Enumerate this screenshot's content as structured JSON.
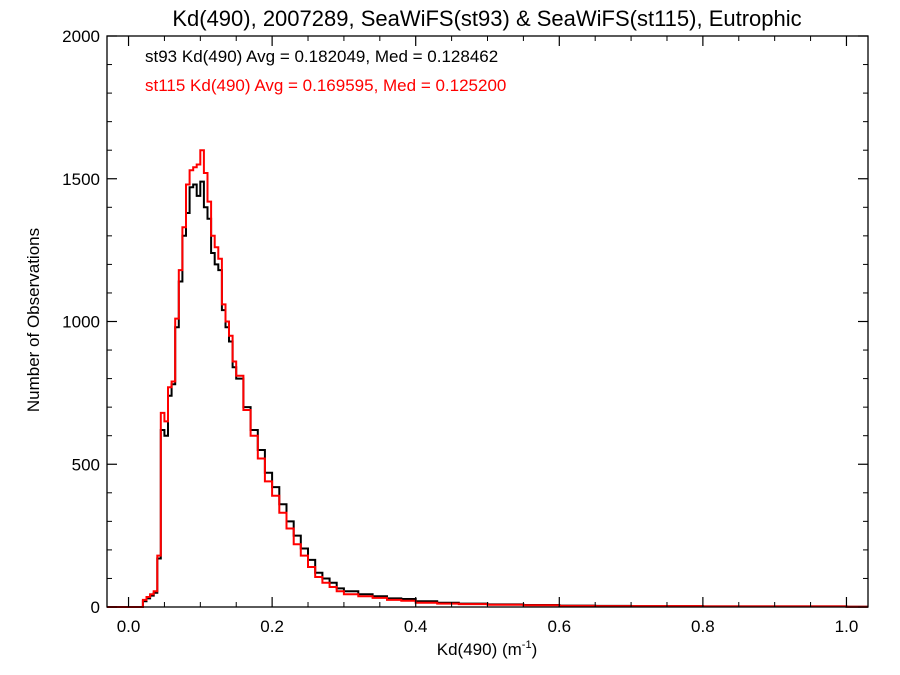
{
  "chart_data": {
    "type": "histogram",
    "title": "Kd(490), 2007289, SeaWiFS(st93) & SeaWiFS(st115), Eutrophic",
    "xlabel": "Kd(490) (m",
    "xlabel_sup": "-1",
    "xlabel_close": ")",
    "ylabel": "Number of Observations",
    "xlim": [
      -0.03,
      1.03
    ],
    "ylim": [
      0,
      2000
    ],
    "xticks": [
      0.0,
      0.2,
      0.4,
      0.6,
      0.8,
      1.0
    ],
    "xtick_labels": [
      "0.0",
      "0.2",
      "0.4",
      "0.6",
      "0.8",
      "1.0"
    ],
    "yticks": [
      0,
      500,
      1000,
      1500,
      2000
    ],
    "ytick_labels": [
      "0",
      "500",
      "1000",
      "1500",
      "2000"
    ],
    "bin_width": 0.005,
    "series": [
      {
        "name": "st93",
        "color": "#000000",
        "annotation": "st93 Kd(490) Avg = 0.182049, Med = 0.128462",
        "x": [
          -0.03,
          0.015,
          0.02,
          0.025,
          0.03,
          0.035,
          0.04,
          0.045,
          0.05,
          0.055,
          0.06,
          0.065,
          0.07,
          0.075,
          0.08,
          0.085,
          0.09,
          0.095,
          0.1,
          0.105,
          0.11,
          0.115,
          0.12,
          0.125,
          0.13,
          0.135,
          0.14,
          0.145,
          0.15,
          0.16,
          0.17,
          0.18,
          0.19,
          0.2,
          0.21,
          0.22,
          0.23,
          0.24,
          0.25,
          0.26,
          0.27,
          0.28,
          0.29,
          0.3,
          0.32,
          0.34,
          0.36,
          0.38,
          0.4,
          0.43,
          0.46,
          0.5,
          0.55,
          0.6,
          0.65,
          0.7,
          0.8,
          0.9,
          1.0
        ],
        "y": [
          0,
          0,
          20,
          30,
          40,
          50,
          170,
          620,
          600,
          740,
          780,
          980,
          1140,
          1300,
          1380,
          1470,
          1480,
          1440,
          1490,
          1400,
          1360,
          1240,
          1200,
          1180,
          1040,
          980,
          930,
          840,
          800,
          700,
          620,
          550,
          470,
          420,
          360,
          300,
          250,
          205,
          165,
          120,
          100,
          85,
          65,
          55,
          45,
          38,
          30,
          28,
          20,
          15,
          12,
          9,
          7,
          5,
          4,
          3,
          2,
          2,
          1
        ]
      },
      {
        "name": "st115",
        "color": "#ff0000",
        "annotation": "st115 Kd(490) Avg = 0.169595, Med = 0.125200",
        "x": [
          -0.03,
          0.015,
          0.02,
          0.025,
          0.03,
          0.035,
          0.04,
          0.045,
          0.05,
          0.055,
          0.06,
          0.065,
          0.07,
          0.075,
          0.08,
          0.085,
          0.09,
          0.095,
          0.1,
          0.105,
          0.11,
          0.115,
          0.12,
          0.125,
          0.13,
          0.135,
          0.14,
          0.145,
          0.15,
          0.16,
          0.17,
          0.18,
          0.19,
          0.2,
          0.21,
          0.22,
          0.23,
          0.24,
          0.25,
          0.26,
          0.27,
          0.28,
          0.29,
          0.3,
          0.32,
          0.34,
          0.36,
          0.38,
          0.4,
          0.43,
          0.46,
          0.5,
          0.55,
          0.6,
          0.65,
          0.7,
          0.8,
          0.9,
          1.0
        ],
        "y": [
          0,
          0,
          25,
          35,
          45,
          55,
          180,
          680,
          650,
          770,
          790,
          1010,
          1180,
          1330,
          1480,
          1530,
          1540,
          1550,
          1600,
          1520,
          1420,
          1300,
          1260,
          1220,
          1060,
          1000,
          950,
          860,
          810,
          690,
          600,
          520,
          440,
          390,
          330,
          275,
          220,
          180,
          140,
          105,
          85,
          70,
          55,
          45,
          38,
          32,
          25,
          22,
          15,
          12,
          10,
          8,
          6,
          4,
          3,
          3,
          2,
          2,
          1
        ]
      }
    ]
  }
}
